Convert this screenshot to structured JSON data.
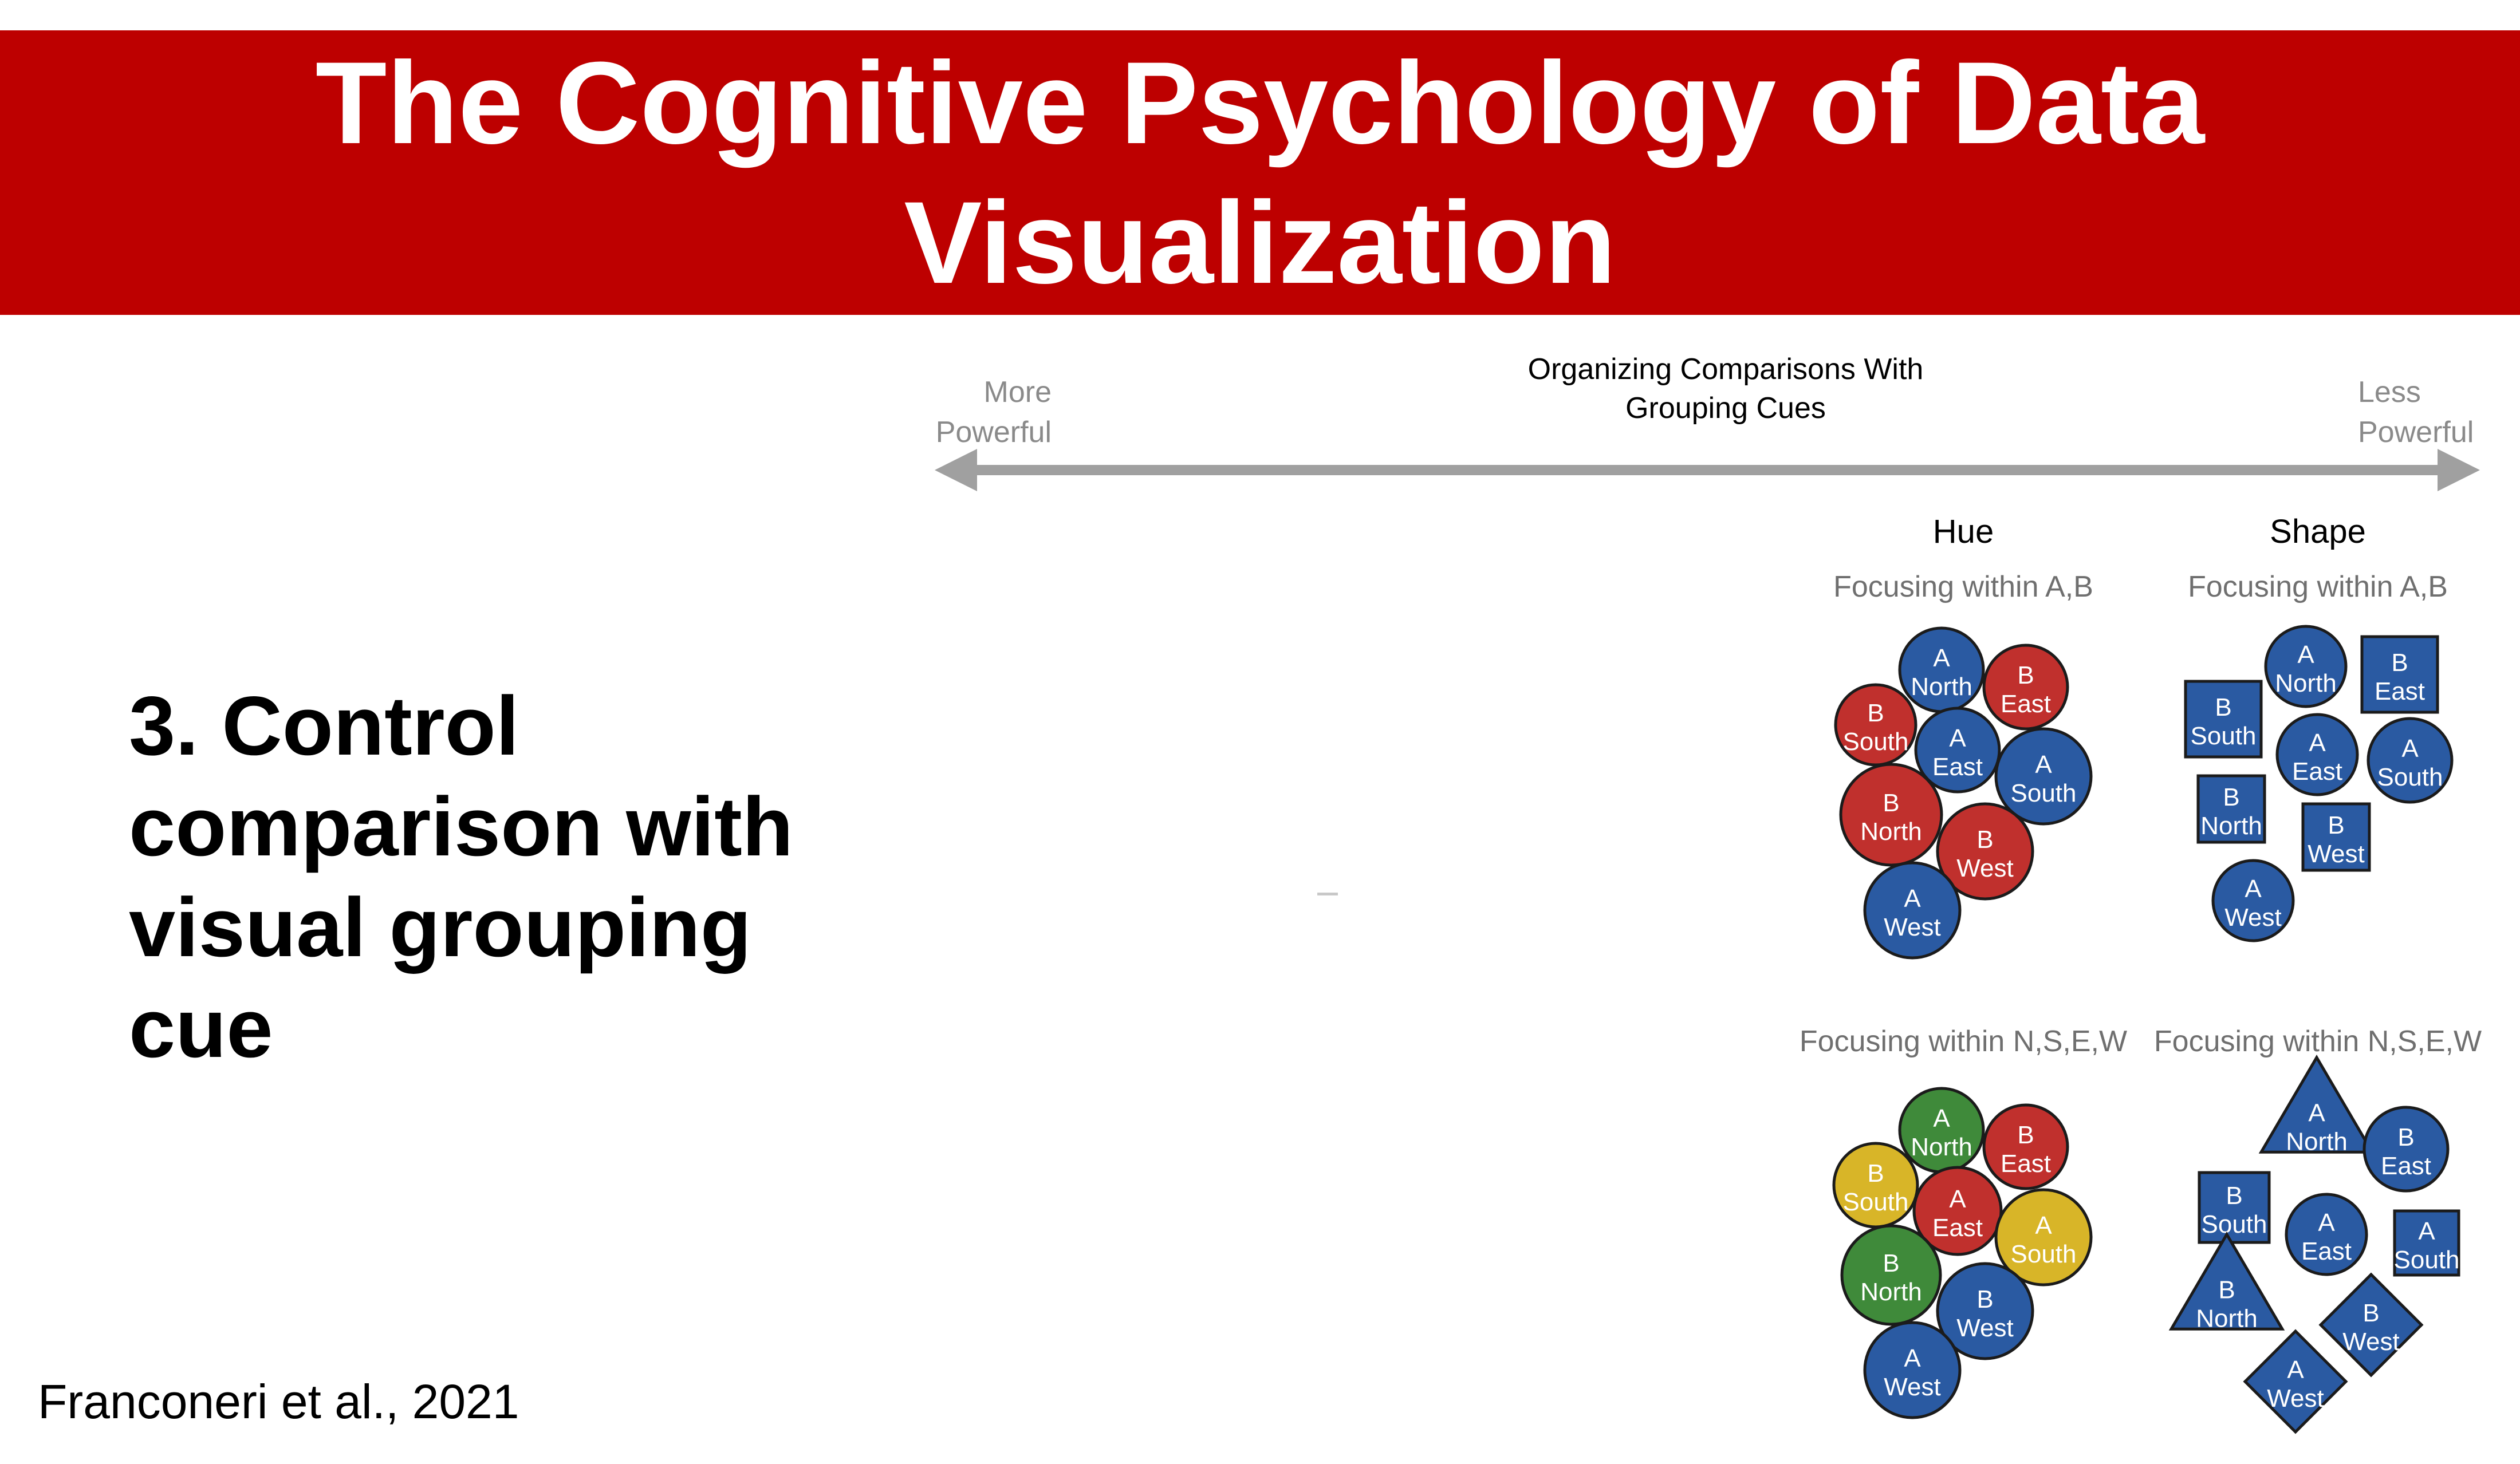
{
  "slide": {
    "title": "The Cognitive Psychology of Data Visualization",
    "point": "3. Control comparison with visual grouping cue",
    "citation": "Franconeri et al., 2021"
  },
  "figure": {
    "header": [
      "Organizing Comparisons With",
      "Grouping Cues"
    ],
    "scale_left": [
      "More",
      "Powerful"
    ],
    "scale_right": [
      "Less",
      "Powerful"
    ],
    "columns": [
      "Hue",
      "Shape"
    ],
    "focus_ab": "Focusing within A,B",
    "focus_nsew": "Focusing within N,S,E,W",
    "colors": {
      "blue": "#2a5aa2",
      "red": "#c0302d",
      "green": "#3f8a3a",
      "yellow": "#d8b528",
      "outline": "#1b1b1b",
      "arrow": "#a0a0a0"
    },
    "panels": [
      {
        "name": "hue-ab",
        "marks": [
          {
            "l1": "A",
            "l2": "North",
            "color": "blue",
            "shape": "circle"
          },
          {
            "l1": "B",
            "l2": "East",
            "color": "red",
            "shape": "circle"
          },
          {
            "l1": "B",
            "l2": "South",
            "color": "red",
            "shape": "circle"
          },
          {
            "l1": "A",
            "l2": "East",
            "color": "blue",
            "shape": "circle"
          },
          {
            "l1": "A",
            "l2": "South",
            "color": "blue",
            "shape": "circle"
          },
          {
            "l1": "B",
            "l2": "North",
            "color": "red",
            "shape": "circle"
          },
          {
            "l1": "B",
            "l2": "West",
            "color": "red",
            "shape": "circle"
          },
          {
            "l1": "A",
            "l2": "West",
            "color": "blue",
            "shape": "circle"
          }
        ]
      },
      {
        "name": "shape-ab",
        "marks": [
          {
            "l1": "A",
            "l2": "North",
            "color": "blue",
            "shape": "circle"
          },
          {
            "l1": "B",
            "l2": "East",
            "color": "blue",
            "shape": "square"
          },
          {
            "l1": "B",
            "l2": "South",
            "color": "blue",
            "shape": "square"
          },
          {
            "l1": "A",
            "l2": "East",
            "color": "blue",
            "shape": "circle"
          },
          {
            "l1": "A",
            "l2": "South",
            "color": "blue",
            "shape": "circle"
          },
          {
            "l1": "B",
            "l2": "North",
            "color": "blue",
            "shape": "square"
          },
          {
            "l1": "B",
            "l2": "West",
            "color": "blue",
            "shape": "square"
          },
          {
            "l1": "A",
            "l2": "West",
            "color": "blue",
            "shape": "circle"
          }
        ]
      },
      {
        "name": "hue-nsew",
        "marks": [
          {
            "l1": "A",
            "l2": "North",
            "color": "green",
            "shape": "circle"
          },
          {
            "l1": "B",
            "l2": "East",
            "color": "red",
            "shape": "circle"
          },
          {
            "l1": "B",
            "l2": "South",
            "color": "yellow",
            "shape": "circle"
          },
          {
            "l1": "A",
            "l2": "East",
            "color": "red",
            "shape": "circle"
          },
          {
            "l1": "A",
            "l2": "South",
            "color": "yellow",
            "shape": "circle"
          },
          {
            "l1": "B",
            "l2": "North",
            "color": "green",
            "shape": "circle"
          },
          {
            "l1": "B",
            "l2": "West",
            "color": "blue",
            "shape": "circle"
          },
          {
            "l1": "A",
            "l2": "West",
            "color": "blue",
            "shape": "circle"
          }
        ]
      },
      {
        "name": "shape-nsew",
        "marks": [
          {
            "l1": "A",
            "l2": "North",
            "color": "blue",
            "shape": "triangle"
          },
          {
            "l1": "B",
            "l2": "East",
            "color": "blue",
            "shape": "circle"
          },
          {
            "l1": "B",
            "l2": "South",
            "color": "blue",
            "shape": "square"
          },
          {
            "l1": "A",
            "l2": "East",
            "color": "blue",
            "shape": "circle"
          },
          {
            "l1": "A",
            "l2": "South",
            "color": "blue",
            "shape": "square"
          },
          {
            "l1": "B",
            "l2": "North",
            "color": "blue",
            "shape": "triangle"
          },
          {
            "l1": "B",
            "l2": "West",
            "color": "blue",
            "shape": "diamond"
          },
          {
            "l1": "A",
            "l2": "West",
            "color": "blue",
            "shape": "diamond"
          }
        ]
      }
    ]
  }
}
